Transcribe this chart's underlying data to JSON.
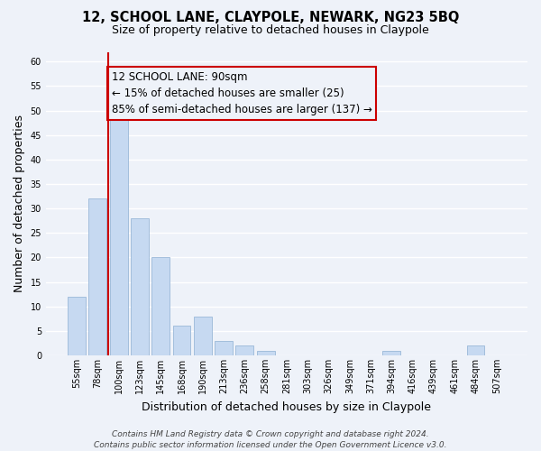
{
  "title": "12, SCHOOL LANE, CLAYPOLE, NEWARK, NG23 5BQ",
  "subtitle": "Size of property relative to detached houses in Claypole",
  "xlabel": "Distribution of detached houses by size in Claypole",
  "ylabel": "Number of detached properties",
  "bar_labels": [
    "55sqm",
    "78sqm",
    "100sqm",
    "123sqm",
    "145sqm",
    "168sqm",
    "190sqm",
    "213sqm",
    "236sqm",
    "258sqm",
    "281sqm",
    "303sqm",
    "326sqm",
    "349sqm",
    "371sqm",
    "394sqm",
    "416sqm",
    "439sqm",
    "461sqm",
    "484sqm",
    "507sqm"
  ],
  "bar_values": [
    12,
    32,
    48,
    28,
    20,
    6,
    8,
    3,
    2,
    1,
    0,
    0,
    0,
    0,
    0,
    1,
    0,
    0,
    0,
    2,
    0
  ],
  "bar_color": "#c6d9f1",
  "bar_edge_color": "#9ab8d8",
  "vline_color": "#cc0000",
  "vline_x_index": 2,
  "ylim": [
    0,
    62
  ],
  "yticks": [
    0,
    5,
    10,
    15,
    20,
    25,
    30,
    35,
    40,
    45,
    50,
    55,
    60
  ],
  "annotation_line1": "12 SCHOOL LANE: 90sqm",
  "annotation_line2": "← 15% of detached houses are smaller (25)",
  "annotation_line3": "85% of semi-detached houses are larger (137) →",
  "footer_line1": "Contains HM Land Registry data © Crown copyright and database right 2024.",
  "footer_line2": "Contains public sector information licensed under the Open Government Licence v3.0.",
  "bg_color": "#eef2f9",
  "grid_color": "#ffffff",
  "title_fontsize": 10.5,
  "subtitle_fontsize": 9,
  "axis_label_fontsize": 9,
  "tick_fontsize": 7,
  "annotation_fontsize": 8.5,
  "footer_fontsize": 6.5
}
